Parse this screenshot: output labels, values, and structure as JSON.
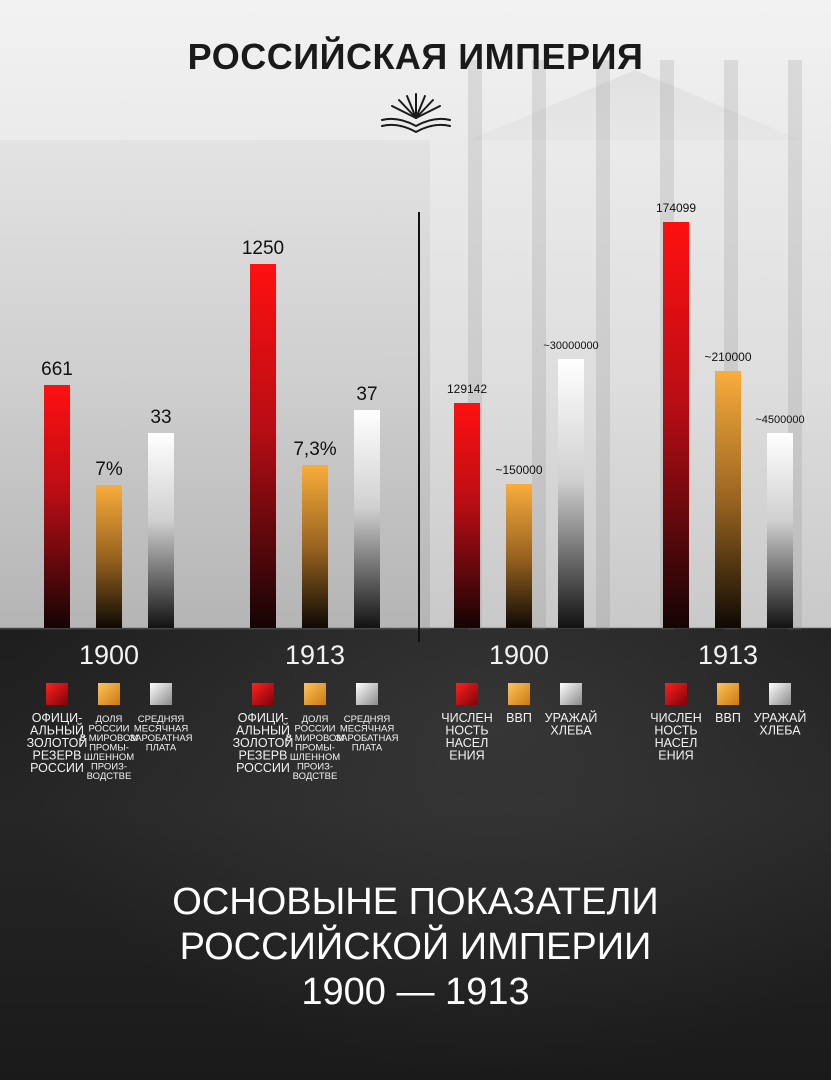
{
  "header": {
    "title": "РОССИЙСКАЯ ИМПЕРИЯ"
  },
  "footer": {
    "lines": [
      "ОСНОВЫНЕ ПОКАЗАТЕЛИ",
      "РОССИЙСКОЙ ИМПЕРИИ",
      "1900 — 1913"
    ]
  },
  "colors": {
    "red": "#e8101a",
    "orange": "#f5a838",
    "white": "#ffffff"
  },
  "chart_data": [
    {
      "type": "bar",
      "categories": [
        "1900",
        "1913"
      ],
      "series": [
        {
          "name": "ОФИЦИ-АЛЬНЫЙ ЗОЛОТОЙ РЕЗЕРВ РОССИИ",
          "color": "red",
          "values": [
            661,
            1250
          ],
          "labels": [
            "661",
            "1250"
          ],
          "legend_lines": [
            "ОФИЦИ-",
            "АЛЬНЫЙ",
            "ЗОЛОТОЙ",
            "РЕЗЕРВ",
            "РОССИИ"
          ]
        },
        {
          "name": "ДОЛЯ РОССИИ В МИРОВОМ ПРОМЫ-ШЛЕННОМ ПРОИЗ-ВОДСТВЕ",
          "color": "orange",
          "values": [
            7,
            7.3
          ],
          "labels": [
            "7%",
            "7,3%"
          ],
          "legend_lines": [
            "ДОЛЯ",
            "РОССИИ",
            "В МИРОВОМ",
            "ПРОМЫ-",
            "ШЛЕННОМ",
            "ПРОИЗ-",
            "ВОДСТВЕ"
          ]
        },
        {
          "name": "СРЕДНЯЯ МЕСЯЧНАЯ ЗАРОБАТНАЯ ПЛАТА",
          "color": "white",
          "values": [
            33,
            37
          ],
          "labels": [
            "33",
            "37"
          ],
          "legend_lines": [
            "СРЕДНЯЯ",
            "МЕСЯЧНАЯ",
            "ЗАРОБАТНАЯ",
            "ПЛАТА"
          ]
        }
      ]
    },
    {
      "type": "bar",
      "categories": [
        "1900",
        "1913"
      ],
      "series": [
        {
          "name": "ЧИСЛЕННОСТЬ НАСЕЛЕНИЯ",
          "color": "red",
          "values": [
            129142,
            174099
          ],
          "labels": [
            "129142",
            "174099"
          ],
          "legend_lines": [
            "ЧИСЛЕН",
            "НОСТЬ",
            "НАСЕЛ",
            "ЕНИЯ"
          ]
        },
        {
          "name": "ВВП",
          "color": "orange",
          "values": [
            150000,
            210000
          ],
          "labels": [
            "~150000",
            "~210000"
          ],
          "legend_lines": [
            "ВВП"
          ]
        },
        {
          "name": "УРАЖАЙ ХЛЕБА",
          "color": "white",
          "values": [
            30000000,
            4500000
          ],
          "labels": [
            "~30000000",
            "~4500000"
          ],
          "legend_lines": [
            "УРАЖАЙ",
            "ХЛЕБА"
          ]
        }
      ]
    }
  ]
}
